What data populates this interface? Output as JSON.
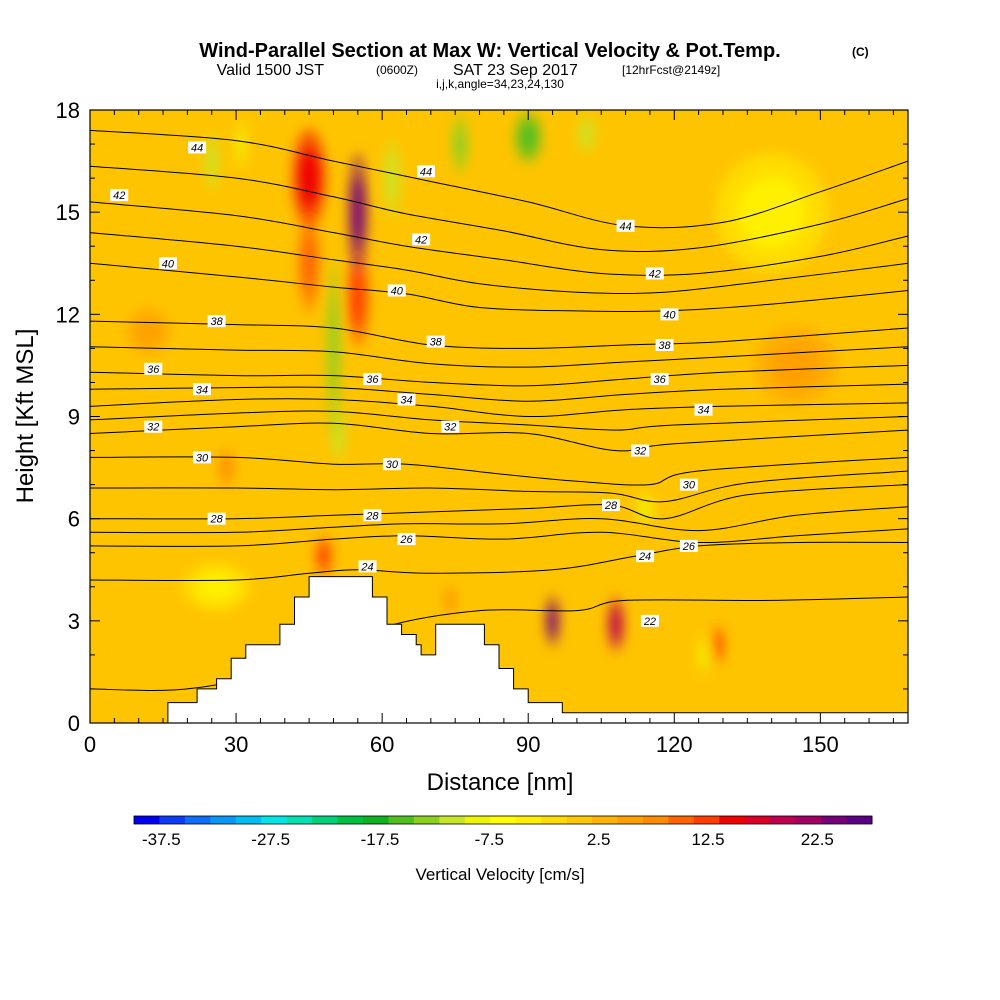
{
  "chart_data": {
    "type": "heatmap",
    "title": "Wind-Parallel Section at Max W: Vertical Velocity & Pot.Temp.",
    "title_mark": "(C)",
    "subtitle_valid": "Valid 1500 JST",
    "subtitle_utc": "(0600Z)",
    "subtitle_date": "SAT 23 Sep 2017",
    "subtitle_fcst": "[12hrFcst@2149z]",
    "subtitle_indices": "i,j,k,angle=34,23,24,130",
    "xlabel": "Distance [nm]",
    "ylabel": "Height [Kft MSL]",
    "xlim": [
      0,
      168
    ],
    "ylim": [
      0,
      18
    ],
    "x_ticks": [
      0,
      30,
      60,
      90,
      120,
      150
    ],
    "y_ticks": [
      0,
      3,
      6,
      9,
      12,
      15,
      18
    ],
    "colorbar": {
      "label": "Vertical Velocity [cm/s]",
      "tick_labels": [
        "-37.5",
        "-27.5",
        "-17.5",
        "-7.5",
        "2.5",
        "12.5",
        "22.5"
      ],
      "tick_values": [
        -37.5,
        -27.5,
        -17.5,
        -7.5,
        2.5,
        12.5,
        22.5
      ],
      "range": [
        -40,
        27.5
      ],
      "colors": [
        "#0000f0",
        "#0a3cf5",
        "#0f6ef5",
        "#0a96f5",
        "#00bef0",
        "#00e6e6",
        "#00e0b0",
        "#00d078",
        "#00c040",
        "#10b020",
        "#50c020",
        "#8cd020",
        "#c8e628",
        "#f0f500",
        "#ffff00",
        "#fff000",
        "#ffdc00",
        "#ffc800",
        "#ffb400",
        "#ffa000",
        "#ff8c00",
        "#ff6400",
        "#ff3c00",
        "#f00000",
        "#dc0028",
        "#be0050",
        "#a00064",
        "#78007a",
        "#5a0082"
      ]
    },
    "vertical_velocity_cores": [
      {
        "x": 45,
        "y": 16.0,
        "w": 6,
        "h": 2.5,
        "value": 14
      },
      {
        "x": 45,
        "y": 13.5,
        "w": 4,
        "h": 2.5,
        "value": 9
      },
      {
        "x": 55,
        "y": 15.0,
        "w": 3.5,
        "h": 3.0,
        "value": 24
      },
      {
        "x": 55,
        "y": 12.5,
        "w": 4,
        "h": 2.5,
        "value": 12
      },
      {
        "x": 48,
        "y": 4.9,
        "w": 3,
        "h": 1.0,
        "value": 13
      },
      {
        "x": 95,
        "y": 3.0,
        "w": 2.5,
        "h": 1.3,
        "value": 23
      },
      {
        "x": 108,
        "y": 2.9,
        "w": 3.0,
        "h": 1.4,
        "value": 20
      },
      {
        "x": 74,
        "y": 3.6,
        "w": 2,
        "h": 0.8,
        "value": 8
      },
      {
        "x": 129,
        "y": 2.3,
        "w": 2,
        "h": 1.0,
        "value": 12
      },
      {
        "x": 50,
        "y": 11.0,
        "w": 2.5,
        "h": 4.5,
        "value": -13
      },
      {
        "x": 51,
        "y": 8.5,
        "w": 2.5,
        "h": 1.5,
        "value": -11
      },
      {
        "x": 62,
        "y": 16.0,
        "w": 3,
        "h": 2.0,
        "value": -11
      },
      {
        "x": 76,
        "y": 17.0,
        "w": 3,
        "h": 1.5,
        "value": -13
      },
      {
        "x": 90,
        "y": 17.2,
        "w": 5,
        "h": 1.3,
        "value": -16
      },
      {
        "x": 102,
        "y": 17.3,
        "w": 3,
        "h": 1.0,
        "value": -11
      },
      {
        "x": 25,
        "y": 16.5,
        "w": 2.5,
        "h": 1.5,
        "value": -10
      },
      {
        "x": 31,
        "y": 17.0,
        "w": 2.0,
        "h": 1.2,
        "value": -9
      },
      {
        "x": 114,
        "y": 6.3,
        "w": 3,
        "h": 0.8,
        "value": -8
      },
      {
        "x": 126,
        "y": 2.0,
        "w": 2,
        "h": 1.0,
        "value": -8
      },
      {
        "x": 26,
        "y": 4.0,
        "w": 12,
        "h": 1.2,
        "value": -3
      },
      {
        "x": 140,
        "y": 15.0,
        "w": 20,
        "h": 3.0,
        "value": -3
      },
      {
        "x": 12,
        "y": 11.5,
        "w": 8,
        "h": 1.2,
        "value": 6
      },
      {
        "x": 145,
        "y": 10.5,
        "w": 15,
        "h": 2.0,
        "value": 5
      },
      {
        "x": 28,
        "y": 7.5,
        "w": 3,
        "h": 1.0,
        "value": 8
      }
    ],
    "terrain": [
      [
        0,
        0
      ],
      [
        16,
        0
      ],
      [
        16,
        0.6
      ],
      [
        22,
        0.6
      ],
      [
        22,
        1.0
      ],
      [
        26,
        1.0
      ],
      [
        26,
        1.3
      ],
      [
        29,
        1.3
      ],
      [
        29,
        1.9
      ],
      [
        32,
        1.9
      ],
      [
        32,
        2.3
      ],
      [
        39,
        2.3
      ],
      [
        39,
        2.9
      ],
      [
        42,
        2.9
      ],
      [
        42,
        3.7
      ],
      [
        45,
        3.7
      ],
      [
        45,
        4.3
      ],
      [
        58,
        4.3
      ],
      [
        58,
        3.7
      ],
      [
        61,
        3.7
      ],
      [
        61,
        2.9
      ],
      [
        64,
        2.9
      ],
      [
        64,
        2.6
      ],
      [
        67,
        2.6
      ],
      [
        67,
        2.3
      ],
      [
        68,
        2.3
      ],
      [
        68,
        2.0
      ],
      [
        71,
        2.0
      ],
      [
        71,
        2.9
      ],
      [
        81,
        2.9
      ],
      [
        81,
        2.3
      ],
      [
        84,
        2.3
      ],
      [
        84,
        1.6
      ],
      [
        87,
        1.6
      ],
      [
        87,
        1.0
      ],
      [
        90,
        1.0
      ],
      [
        90,
        0.6
      ],
      [
        97,
        0.6
      ],
      [
        97,
        0.3
      ],
      [
        168,
        0.3
      ],
      [
        168,
        0
      ]
    ],
    "isentropes": [
      {
        "level": 22,
        "points": [
          [
            0,
            1.0
          ],
          [
            20,
            1.0
          ],
          [
            40,
            1.6
          ],
          [
            60,
            2.8
          ],
          [
            80,
            3.3
          ],
          [
            100,
            3.3
          ],
          [
            110,
            3.6
          ],
          [
            140,
            3.6
          ],
          [
            168,
            3.7
          ]
        ]
      },
      {
        "level": 24,
        "points": [
          [
            0,
            4.2
          ],
          [
            30,
            4.2
          ],
          [
            45,
            4.4
          ],
          [
            55,
            4.5
          ],
          [
            70,
            4.4
          ],
          [
            95,
            4.5
          ],
          [
            112,
            4.9
          ],
          [
            125,
            5.2
          ],
          [
            145,
            5.3
          ],
          [
            168,
            5.3
          ]
        ]
      },
      {
        "level": 26,
        "points": [
          [
            0,
            5.2
          ],
          [
            30,
            5.2
          ],
          [
            50,
            5.4
          ],
          [
            65,
            5.5
          ],
          [
            85,
            5.4
          ],
          [
            105,
            5.6
          ],
          [
            125,
            5.3
          ],
          [
            145,
            5.5
          ],
          [
            168,
            5.7
          ]
        ]
      },
      {
        "level": 28,
        "points": [
          [
            0,
            6.0
          ],
          [
            30,
            6.0
          ],
          [
            50,
            6.1
          ],
          [
            70,
            6.2
          ],
          [
            90,
            6.3
          ],
          [
            107,
            6.4
          ],
          [
            118,
            6.0
          ],
          [
            135,
            6.7
          ],
          [
            168,
            7.0
          ]
        ]
      },
      {
        "level": 30,
        "points": [
          [
            0,
            7.8
          ],
          [
            30,
            7.8
          ],
          [
            50,
            7.6
          ],
          [
            65,
            7.6
          ],
          [
            85,
            7.3
          ],
          [
            100,
            7.1
          ],
          [
            115,
            7.0
          ],
          [
            125,
            7.4
          ],
          [
            168,
            7.8
          ]
        ]
      },
      {
        "level": 32,
        "points": [
          [
            0,
            8.5
          ],
          [
            30,
            8.7
          ],
          [
            50,
            8.8
          ],
          [
            70,
            8.5
          ],
          [
            90,
            8.5
          ],
          [
            108,
            8.0
          ],
          [
            120,
            8.2
          ],
          [
            168,
            8.6
          ]
        ]
      },
      {
        "level": 34,
        "points": [
          [
            0,
            9.3
          ],
          [
            30,
            9.5
          ],
          [
            50,
            9.5
          ],
          [
            70,
            9.3
          ],
          [
            90,
            9.0
          ],
          [
            110,
            9.2
          ],
          [
            130,
            9.3
          ],
          [
            168,
            9.4
          ]
        ]
      },
      {
        "level": 36,
        "points": [
          [
            0,
            10.3
          ],
          [
            30,
            10.2
          ],
          [
            50,
            10.2
          ],
          [
            70,
            10.0
          ],
          [
            90,
            9.9
          ],
          [
            110,
            10.1
          ],
          [
            130,
            10.3
          ],
          [
            168,
            10.5
          ]
        ]
      },
      {
        "level": 38,
        "points": [
          [
            0,
            11.8
          ],
          [
            30,
            11.7
          ],
          [
            50,
            11.6
          ],
          [
            70,
            11.1
          ],
          [
            90,
            11.0
          ],
          [
            110,
            11.1
          ],
          [
            130,
            11.2
          ],
          [
            168,
            11.6
          ]
        ]
      },
      {
        "level": 40,
        "points": [
          [
            0,
            13.5
          ],
          [
            30,
            13.1
          ],
          [
            50,
            12.8
          ],
          [
            65,
            12.6
          ],
          [
            80,
            12.2
          ],
          [
            100,
            12.1
          ],
          [
            118,
            12.1
          ],
          [
            140,
            12.3
          ],
          [
            168,
            12.7
          ]
        ]
      },
      {
        "level": 42,
        "points": [
          [
            0,
            15.3
          ],
          [
            30,
            14.9
          ],
          [
            50,
            14.4
          ],
          [
            65,
            14.0
          ],
          [
            85,
            13.6
          ],
          [
            105,
            13.2
          ],
          [
            125,
            13.2
          ],
          [
            150,
            13.7
          ],
          [
            168,
            14.3
          ]
        ]
      },
      {
        "level": 44,
        "points": [
          [
            0,
            17.4
          ],
          [
            30,
            17.1
          ],
          [
            50,
            16.5
          ],
          [
            70,
            15.9
          ],
          [
            90,
            15.3
          ],
          [
            110,
            14.6
          ],
          [
            130,
            14.7
          ],
          [
            150,
            15.6
          ],
          [
            168,
            16.5
          ]
        ]
      }
    ],
    "isentrope_labels": [
      {
        "text": "44",
        "x": 22,
        "y": 16.9
      },
      {
        "text": "42",
        "x": 6,
        "y": 15.5
      },
      {
        "text": "40",
        "x": 16,
        "y": 13.5
      },
      {
        "text": "38",
        "x": 26,
        "y": 11.8
      },
      {
        "text": "36",
        "x": 13,
        "y": 10.4
      },
      {
        "text": "34",
        "x": 23,
        "y": 9.8
      },
      {
        "text": "32",
        "x": 13,
        "y": 8.7
      },
      {
        "text": "30",
        "x": 23,
        "y": 7.8
      },
      {
        "text": "28",
        "x": 26,
        "y": 6.0
      },
      {
        "text": "44",
        "x": 69,
        "y": 16.2
      },
      {
        "text": "42",
        "x": 68,
        "y": 14.2
      },
      {
        "text": "40",
        "x": 63,
        "y": 12.7
      },
      {
        "text": "38",
        "x": 71,
        "y": 11.2
      },
      {
        "text": "36",
        "x": 58,
        "y": 10.1
      },
      {
        "text": "34",
        "x": 65,
        "y": 9.5
      },
      {
        "text": "32",
        "x": 74,
        "y": 8.7
      },
      {
        "text": "30",
        "x": 62,
        "y": 7.6
      },
      {
        "text": "28",
        "x": 58,
        "y": 6.1
      },
      {
        "text": "26",
        "x": 65,
        "y": 5.4
      },
      {
        "text": "24",
        "x": 57,
        "y": 4.6
      },
      {
        "text": "44",
        "x": 110,
        "y": 14.6
      },
      {
        "text": "42",
        "x": 116,
        "y": 13.2
      },
      {
        "text": "40",
        "x": 119,
        "y": 12.0
      },
      {
        "text": "38",
        "x": 118,
        "y": 11.1
      },
      {
        "text": "36",
        "x": 117,
        "y": 10.1
      },
      {
        "text": "34",
        "x": 126,
        "y": 9.2
      },
      {
        "text": "32",
        "x": 113,
        "y": 8.0
      },
      {
        "text": "30",
        "x": 123,
        "y": 7.0
      },
      {
        "text": "28",
        "x": 107,
        "y": 6.4
      },
      {
        "text": "26",
        "x": 123,
        "y": 5.2
      },
      {
        "text": "24",
        "x": 114,
        "y": 4.9
      },
      {
        "text": "22",
        "x": 115,
        "y": 3.0
      }
    ]
  }
}
